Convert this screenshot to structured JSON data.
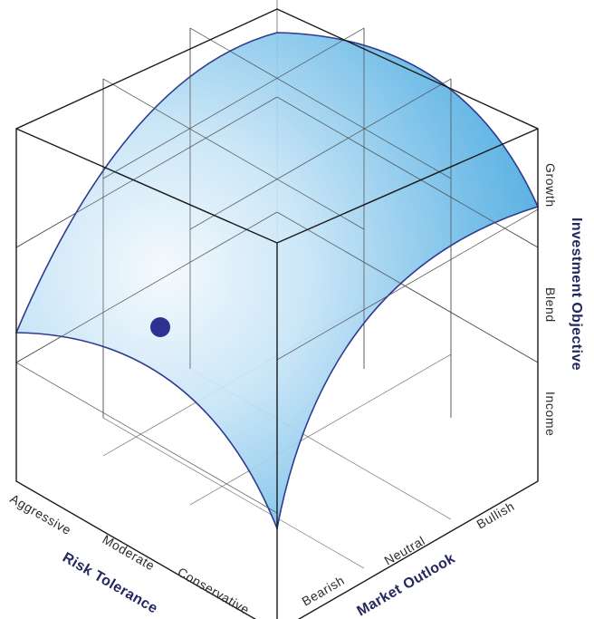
{
  "axes": {
    "risk_tolerance": {
      "title": "Risk Tolerance",
      "ticks": [
        "Aggressive",
        "Moderate",
        "Conservative"
      ]
    },
    "market_outlook": {
      "title": "Market Outlook",
      "ticks": [
        "Bearish",
        "Neutral",
        "Bullish"
      ]
    },
    "investment_objective": {
      "title": "Investment Objective",
      "ticks": [
        "Income",
        "Blend",
        "Growth"
      ]
    }
  },
  "colors": {
    "surface_light": "#f4f9fd",
    "surface_mid": "#a9d6f1",
    "surface_dark": "#3ea3dd",
    "surface_edge": "#2e3b8f",
    "marker": "#2f3190",
    "axis_title": "#24285f"
  }
}
